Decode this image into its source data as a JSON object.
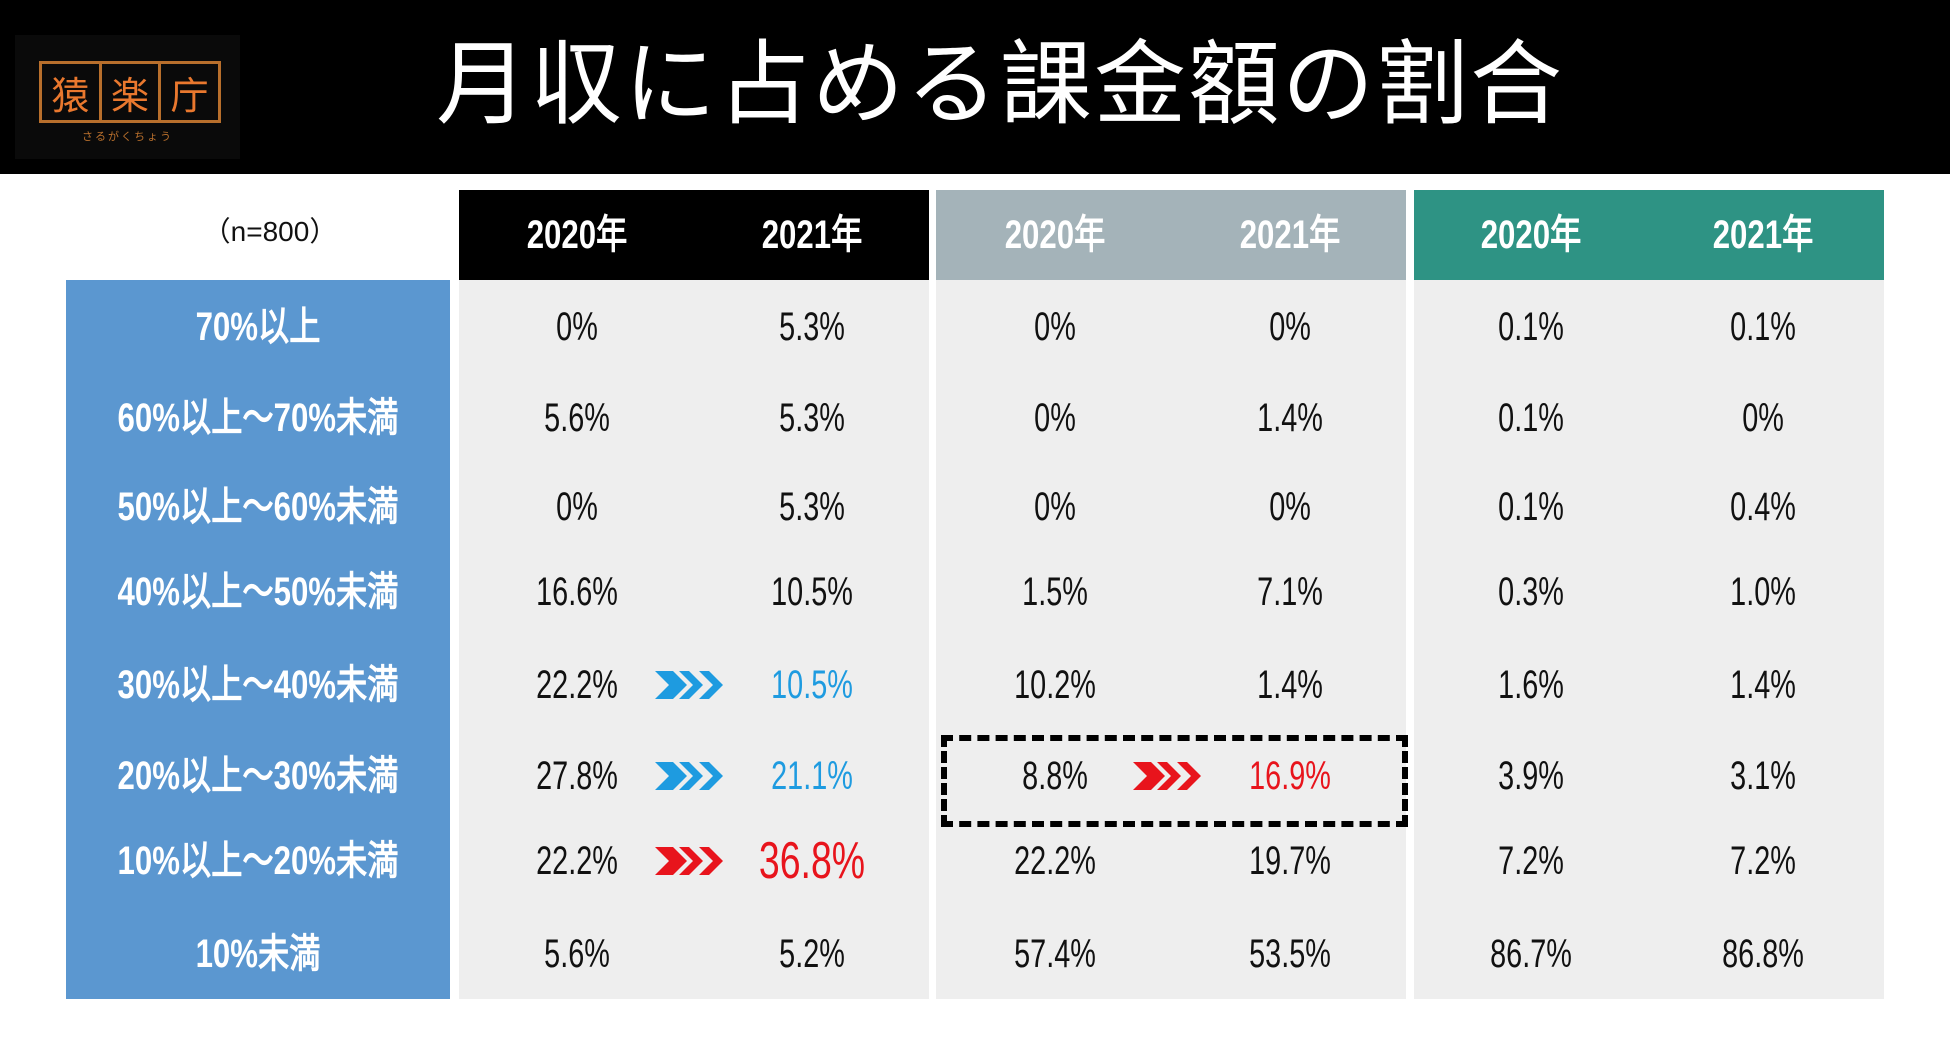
{
  "header": {
    "title": "月収に占める課金額の割合",
    "logo": {
      "chars": [
        "猿",
        "楽",
        "庁"
      ],
      "reading": "さるがくちょう"
    }
  },
  "table": {
    "sample_size": "（n=800）",
    "column_groups": [
      {
        "color": "#000000",
        "years": [
          "2020年",
          "2021年"
        ]
      },
      {
        "color": "#a4b3b9",
        "years": [
          "2020年",
          "2021年"
        ]
      },
      {
        "color": "#2e9384",
        "years": [
          "2020年",
          "2021年"
        ]
      }
    ],
    "rows": [
      {
        "label": "70%以上",
        "values": [
          "0%",
          "5.3%",
          "0%",
          "0%",
          "0.1%",
          "0.1%"
        ]
      },
      {
        "label": "60%以上～70%未満",
        "values": [
          "5.6%",
          "5.3%",
          "0%",
          "1.4%",
          "0.1%",
          "0%"
        ]
      },
      {
        "label": "50%以上～60%未満",
        "values": [
          "0%",
          "5.3%",
          "0%",
          "0%",
          "0.1%",
          "0.4%"
        ]
      },
      {
        "label": "40%以上～50%未満",
        "values": [
          "16.6%",
          "10.5%",
          "1.5%",
          "7.1%",
          "0.3%",
          "1.0%"
        ]
      },
      {
        "label": "30%以上～40%未満",
        "values": [
          "22.2%",
          "10.5%",
          "10.2%",
          "1.4%",
          "1.6%",
          "1.4%"
        ]
      },
      {
        "label": "20%以上～30%未満",
        "values": [
          "27.8%",
          "21.1%",
          "8.8%",
          "16.9%",
          "3.9%",
          "3.1%"
        ]
      },
      {
        "label": "10%以上～20%未満",
        "values": [
          "22.2%",
          "36.8%",
          "22.2%",
          "19.7%",
          "7.2%",
          "7.2%"
        ]
      },
      {
        "label": "10%未満",
        "values": [
          "5.6%",
          "5.2%",
          "57.4%",
          "53.5%",
          "86.7%",
          "86.8%"
        ]
      }
    ],
    "highlights": [
      {
        "row": 4,
        "col": 1,
        "color": "#1e9be0",
        "large": false,
        "trend": "decrease"
      },
      {
        "row": 5,
        "col": 1,
        "color": "#1e9be0",
        "large": false,
        "trend": "decrease"
      },
      {
        "row": 6,
        "col": 1,
        "color": "#e8141c",
        "large": true,
        "trend": "increase"
      },
      {
        "row": 5,
        "col": 3,
        "color": "#e8141c",
        "large": false,
        "trend": "increase",
        "boxed": true
      }
    ],
    "colors": {
      "row_label_bg": "#5b97d0",
      "cell_bg": "#eeeeee"
    }
  }
}
